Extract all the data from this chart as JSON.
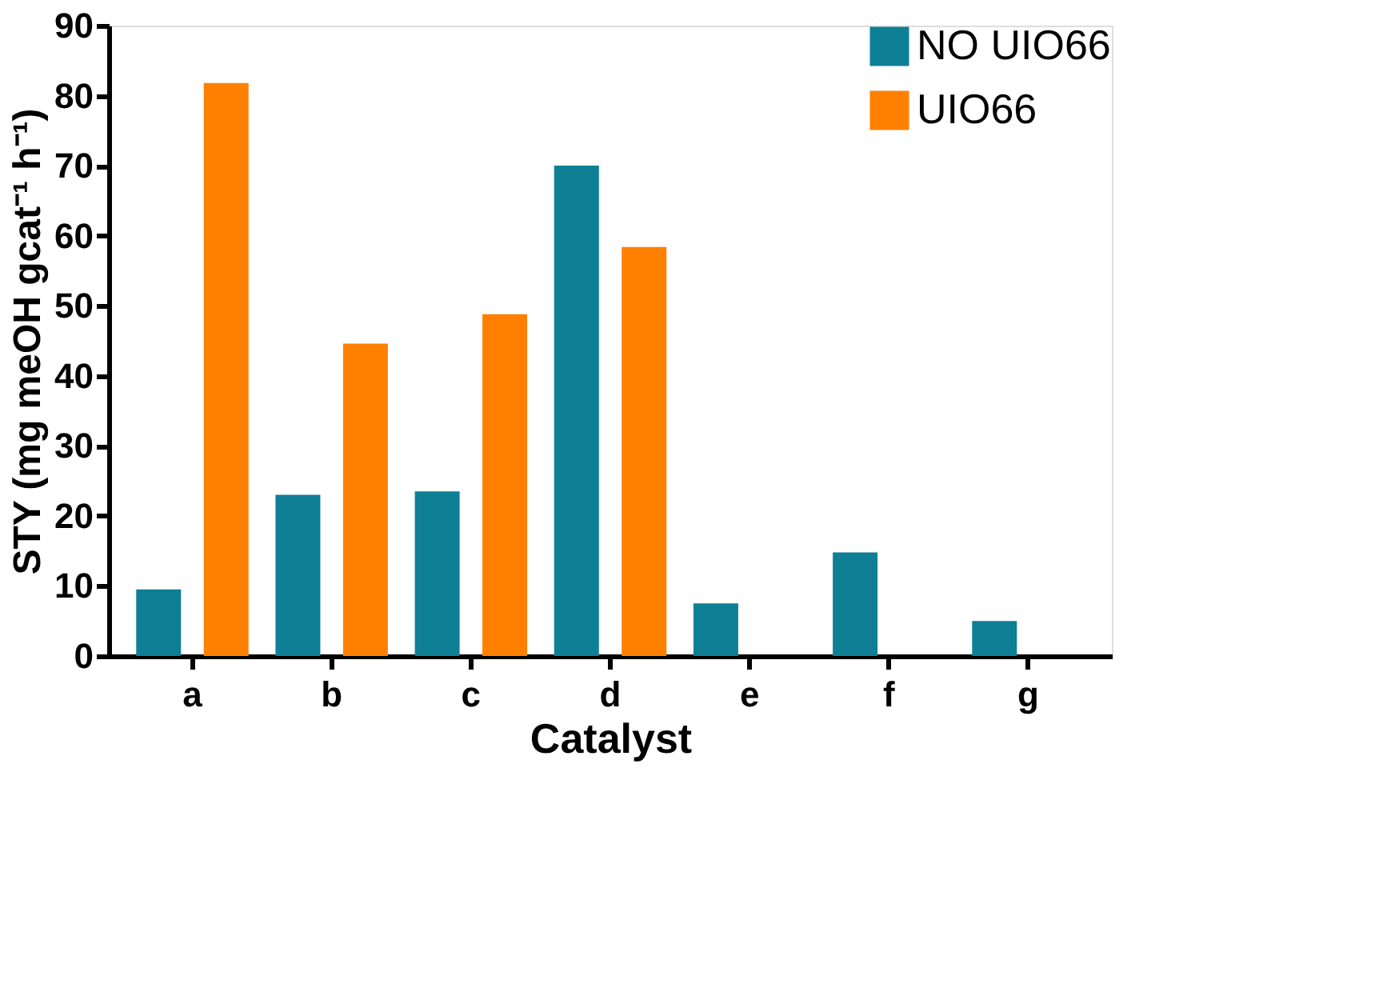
{
  "chart_data": {
    "type": "bar",
    "xlabel": "Catalyst",
    "ylabel": "STY (mg meOH gcat⁻¹ h⁻¹)",
    "categories": [
      "a",
      "b",
      "c",
      "d",
      "e",
      "f",
      "g"
    ],
    "series": [
      {
        "name": "NO UIO66",
        "color": "#0e7f94",
        "values": [
          9.5,
          23,
          23.5,
          70,
          7.5,
          14.8,
          5
        ]
      },
      {
        "name": "UIO66",
        "color": "#ff8000",
        "values": [
          81.8,
          44.6,
          48.8,
          58.4,
          null,
          null,
          null
        ]
      }
    ],
    "ylim": [
      0,
      90
    ],
    "yticks": [
      0,
      10,
      20,
      30,
      40,
      50,
      60,
      70,
      80,
      90
    ],
    "grid": false,
    "legend": "top right"
  }
}
